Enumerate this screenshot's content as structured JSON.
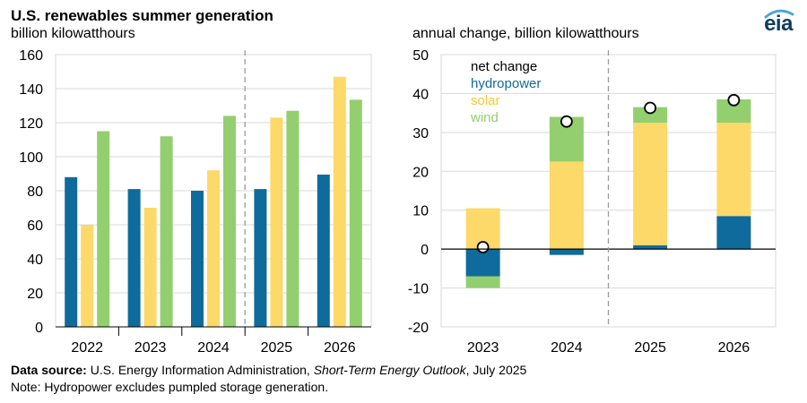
{
  "header": {
    "title": "U.S. renewables summer generation",
    "left_unit": "billion kilowatthours",
    "right_unit": "annual change, billion kilowatthours",
    "logo_text": "eia"
  },
  "footer": {
    "source_label": "Data source:",
    "source_org": "U.S. Energy Information Administration,",
    "source_pub": "Short-Term Energy Outlook",
    "source_date": ", July 2025",
    "note": "Note: Hydropower excludes pumpled storage generation."
  },
  "colors": {
    "hydropower": "#0f6b9b",
    "solar": "#fcd968",
    "wind": "#93cf6f",
    "grid": "#d9d9d9",
    "divider": "#9a9a9a"
  },
  "chart_data": [
    {
      "type": "bar",
      "categories": [
        "2022",
        "2023",
        "2024",
        "2025",
        "2026"
      ],
      "series": [
        {
          "name": "hydropower",
          "values": [
            88,
            81,
            80,
            81,
            89.5
          ]
        },
        {
          "name": "solar",
          "values": [
            60,
            70,
            92,
            123,
            147
          ]
        },
        {
          "name": "wind",
          "values": [
            115,
            112,
            124,
            127,
            133.5
          ]
        }
      ],
      "ylim": [
        0,
        160
      ],
      "yticks": [
        "0",
        "20",
        "40",
        "60",
        "80",
        "100",
        "120",
        "140",
        "160"
      ],
      "forecast_divider_after": "2024"
    },
    {
      "type": "bar",
      "stacked": true,
      "categories": [
        "2023",
        "2024",
        "2025",
        "2026"
      ],
      "series": [
        {
          "name": "hydropower",
          "values": [
            -7,
            -1.5,
            1,
            8.5
          ]
        },
        {
          "name": "solar",
          "values": [
            10.5,
            22.5,
            31.5,
            24
          ]
        },
        {
          "name": "wind",
          "values": [
            -3,
            11.5,
            4,
            6
          ]
        }
      ],
      "net_change": [
        0.5,
        32.8,
        36.3,
        38.3
      ],
      "legend": [
        "net change",
        "hydropower",
        "solar",
        "wind"
      ],
      "ylim": [
        -20,
        50
      ],
      "yticks": [
        "-20",
        "-10",
        "0",
        "10",
        "20",
        "30",
        "40",
        "50"
      ],
      "forecast_divider_after": "2024"
    }
  ]
}
